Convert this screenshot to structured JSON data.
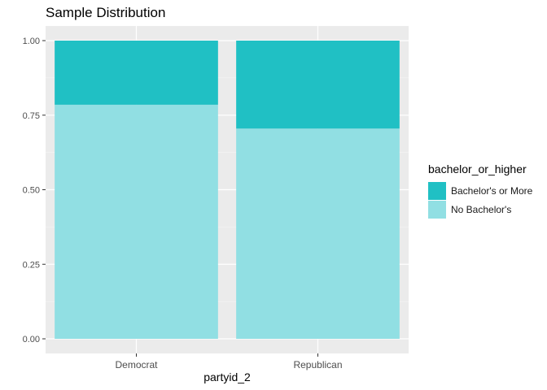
{
  "chart_data": {
    "type": "bar",
    "stacked": true,
    "title": "Sample Distribution",
    "xlabel": "partyid_2",
    "ylabel": "",
    "categories": [
      "Democrat",
      "Republican"
    ],
    "series": [
      {
        "name": "No Bachelor's",
        "values": [
          0.785,
          0.705
        ],
        "color": "#91dfe3"
      },
      {
        "name": "Bachelor's or More",
        "values": [
          0.215,
          0.295
        ],
        "color": "#20c0c4"
      }
    ],
    "ylim": [
      0,
      1
    ],
    "yticks": [
      "0.00",
      "0.25",
      "0.50",
      "0.75",
      "1.00"
    ],
    "legend_title": "bachelor_or_higher",
    "legend_order": [
      "Bachelor's or More",
      "No Bachelor's"
    ],
    "legend_position": "right",
    "grid": true,
    "panel_background": "#ebebeb"
  }
}
